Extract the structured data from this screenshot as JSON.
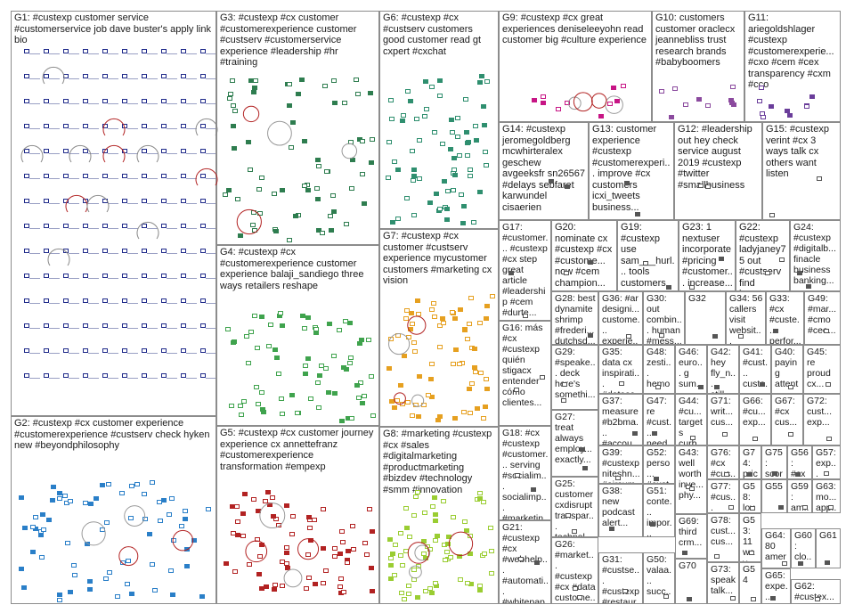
{
  "groups": [
    {
      "id": "G1",
      "label": "G1: #custexp customer service #customerservice job dave buster's apply link bio",
      "color": "#1f2a8a"
    },
    {
      "id": "G2",
      "label": "G2: #custexp #cx customer experience #customerexperience #custserv check hyken new #beyondphilosophy",
      "color": "#2a7fc8"
    },
    {
      "id": "G3",
      "label": "G3: #custexp #cx customer #customerexperience customer #custserv #customerservice experience #leadership #hr #training",
      "color": "#2e7d4f"
    },
    {
      "id": "G4",
      "label": "G4: #custexp #cx #customerexperience customer experience balaji_sandiego three ways retailers reshape",
      "color": "#3fa34d"
    },
    {
      "id": "G5",
      "label": "G5: #custexp #cx customer journey experience cx annettefranz #customerexperience transformation #empexp",
      "color": "#b22222"
    },
    {
      "id": "G6",
      "label": "G6: #custexp #cx #custserv customers good customer read gt cxpert #cxchat",
      "color": "#2f8f6f"
    },
    {
      "id": "G7",
      "label": "G7: #custexp #cx customer #custserv experience mycustomer customers #marketing cx vision",
      "color": "#e6a020"
    },
    {
      "id": "G8",
      "label": "G8: #marketing #custexp #cx #sales #digitalmarketing #productmarketing #bizdev #technology #smm #innovation",
      "color": "#9acd32"
    },
    {
      "id": "G9",
      "label": "G9: #custexp #cx great experiences deniseleeyohn read customer big #culture experience",
      "color": "#c71585"
    },
    {
      "id": "G10",
      "label": "G10: customers customer oraclecx jeannebliss trust research brands #babyboomers",
      "color": "#8b4a9e"
    },
    {
      "id": "G11",
      "label": "G11: ariegoldshlager #custexp #customerexperie... #cxo #cem #cex transparency #cxm #cco",
      "color": "#6a3d9a"
    },
    {
      "id": "G12",
      "label": "G12: #leadership out hey check service august 2019 #custexp #twitter #smallbusiness",
      "color": "#555555"
    },
    {
      "id": "G13",
      "label": "G13: customer experience #custexp #customerexperi... improve #cx customers icxi_tweets business...",
      "color": "#555555"
    },
    {
      "id": "G14",
      "label": "G14: #custexp jeromegoldberg mcwhirteralex geschew avgeeksfr sn26567 #delays sebfaret karwundel cisaerien",
      "color": "#555555"
    },
    {
      "id": "G15",
      "label": "G15: #custexp verint #cx 3 ways talk cx others want listen",
      "color": "#555555"
    },
    {
      "id": "G16",
      "label": "G16: más #cx #custexp quién stigacx entender cómo clientes...",
      "color": "#555555"
    },
    {
      "id": "G17",
      "label": "G17: #customer... #custexp #cx step great article #leadership #cem #durte...",
      "color": "#555555"
    },
    {
      "id": "G18",
      "label": "G18: #cx #custexp #customer... serving #socialim... socialimp... #marketin...",
      "color": "#555555"
    },
    {
      "id": "G19",
      "label": "G19: #custexp use sam___hurl... tools customers sam hurley...",
      "color": "#555555"
    },
    {
      "id": "G20",
      "label": "G20: nominate cx #custexp #cx #custome... now #cem champion...",
      "color": "#555555"
    },
    {
      "id": "G21",
      "label": "G21: #custexp #cx #webhelp... #automati... #whitepap... #ai...",
      "color": "#555555"
    },
    {
      "id": "G22",
      "label": "G22: #custexp ladyjaney75 out #custserv find know...",
      "color": "#555555"
    },
    {
      "id": "G23",
      "label": "G23: 1 nextuser incorporate #pricing #customer... increase...",
      "color": "#555555"
    },
    {
      "id": "G24",
      "label": "G24: #custexp #digitalb... finacle business banking...",
      "color": "#555555"
    },
    {
      "id": "G25",
      "label": "G25: customer cxdisrupt transpar... technol...",
      "color": "#555555"
    },
    {
      "id": "G26",
      "label": "G26: #market... #custexp #cx #data custome...",
      "color": "#555555"
    },
    {
      "id": "G27",
      "label": "G27: treat always employ... exactly...",
      "color": "#555555"
    },
    {
      "id": "G28",
      "label": "G28: best dynamite shrimp #frederi... dutchsd...",
      "color": "#555555"
    },
    {
      "id": "G29",
      "label": "G29: #speake... deck here's somethi...",
      "color": "#555555"
    },
    {
      "id": "G30",
      "label": "G30: out combin... human #mess...",
      "color": "#555555"
    },
    {
      "id": "G31",
      "label": "G31: #custse... #custexp #restaur...",
      "color": "#555555"
    },
    {
      "id": "G32",
      "label": "G32",
      "color": "#555555"
    },
    {
      "id": "G33",
      "label": "G33: #cx #custe... perfor...",
      "color": "#555555"
    },
    {
      "id": "G34",
      "label": "G34: 56 callers visit websit...",
      "color": "#555555"
    },
    {
      "id": "G35",
      "label": "G35: data cx inspirati... #datasc...",
      "color": "#555555"
    },
    {
      "id": "G36",
      "label": "G36: #ar designi... custome... experie...",
      "color": "#555555"
    },
    {
      "id": "G37",
      "label": "G37: measure #b2bma... #accou...",
      "color": "#555555"
    },
    {
      "id": "G38",
      "label": "G38: new podcast alert...",
      "color": "#555555"
    },
    {
      "id": "G39",
      "label": "G39: #custexp niteshn... #airsum...",
      "color": "#555555"
    },
    {
      "id": "G40",
      "label": "G40: paying attent... custo...",
      "color": "#555555"
    },
    {
      "id": "G41",
      "label": "G41: #cust... custo... insur...",
      "color": "#555555"
    },
    {
      "id": "G42",
      "label": "G42: hey fly_n... still...",
      "color": "#555555"
    },
    {
      "id": "G43",
      "label": "G43: well worth inve... phy...",
      "color": "#555555"
    },
    {
      "id": "G44",
      "label": "G44: #cu... target s curb...",
      "color": "#555555"
    },
    {
      "id": "G45",
      "label": "G45: re proud cx...",
      "color": "#555555"
    },
    {
      "id": "G46",
      "label": "G46: euro... g sum...",
      "color": "#555555"
    },
    {
      "id": "G47",
      "label": "G47: re #cust... need...",
      "color": "#555555"
    },
    {
      "id": "G48",
      "label": "G48: zesti... hemo... zillow...",
      "color": "#555555"
    },
    {
      "id": "G49",
      "label": "G49: #mar... #cmo #ceo...",
      "color": "#555555"
    },
    {
      "id": "G50",
      "label": "G50: valaa... succ... comp...",
      "color": "#555555"
    },
    {
      "id": "G51",
      "label": "G51: conte... impor... custo...",
      "color": "#555555"
    },
    {
      "id": "G52",
      "label": "G52: perso... #cust...",
      "color": "#555555"
    },
    {
      "id": "G53",
      "label": "G53: 11 way...",
      "color": "#555555"
    },
    {
      "id": "G54",
      "label": "G54",
      "color": "#555555"
    },
    {
      "id": "G55",
      "label": "G55",
      "color": "#555555"
    },
    {
      "id": "G56",
      "label": "G56: #cx #cus...",
      "color": "#555555"
    },
    {
      "id": "G57",
      "label": "G57: exp...",
      "color": "#555555"
    },
    {
      "id": "G58",
      "label": "G58: love",
      "color": "#555555"
    },
    {
      "id": "G59",
      "label": "G59: am... 2...",
      "color": "#555555"
    },
    {
      "id": "G60",
      "label": "G60: clo... tec...",
      "color": "#555555"
    },
    {
      "id": "G61",
      "label": "G61",
      "color": "#555555"
    },
    {
      "id": "G62",
      "label": "G62: #custex...",
      "color": "#555555"
    },
    {
      "id": "G63",
      "label": "G63: mo... app...",
      "color": "#555555"
    },
    {
      "id": "G64",
      "label": "G64: 80 amer...",
      "color": "#555555"
    },
    {
      "id": "G65",
      "label": "G65: expe...",
      "color": "#555555"
    },
    {
      "id": "G66",
      "label": "G66: #cu... exp...",
      "color": "#555555"
    },
    {
      "id": "G67",
      "label": "G67: #cx cus...",
      "color": "#555555"
    },
    {
      "id": "G68",
      "label": "G68: ikea... cus...",
      "color": "#555555"
    },
    {
      "id": "G69",
      "label": "G69: third crm...",
      "color": "#555555"
    },
    {
      "id": "G70",
      "label": "G70",
      "color": "#555555"
    },
    {
      "id": "G71",
      "label": "G71: writ... cus...",
      "color": "#555555"
    },
    {
      "id": "G72",
      "label": "G72: cust... exp...",
      "color": "#555555"
    },
    {
      "id": "G73",
      "label": "G73: speak talk...",
      "color": "#555555"
    },
    {
      "id": "G74",
      "label": "G74: price",
      "color": "#555555"
    },
    {
      "id": "G75",
      "label": "G75: scor... imp...",
      "color": "#555555"
    },
    {
      "id": "G76",
      "label": "G76: #cx #cus...",
      "color": "#555555"
    },
    {
      "id": "G77",
      "label": "G77: #cus... #cus...",
      "color": "#555555"
    },
    {
      "id": "G78",
      "label": "G78: cust... cus...",
      "color": "#555555"
    },
    {
      "id": "G79",
      "label": "G79",
      "color": "#555555"
    }
  ]
}
